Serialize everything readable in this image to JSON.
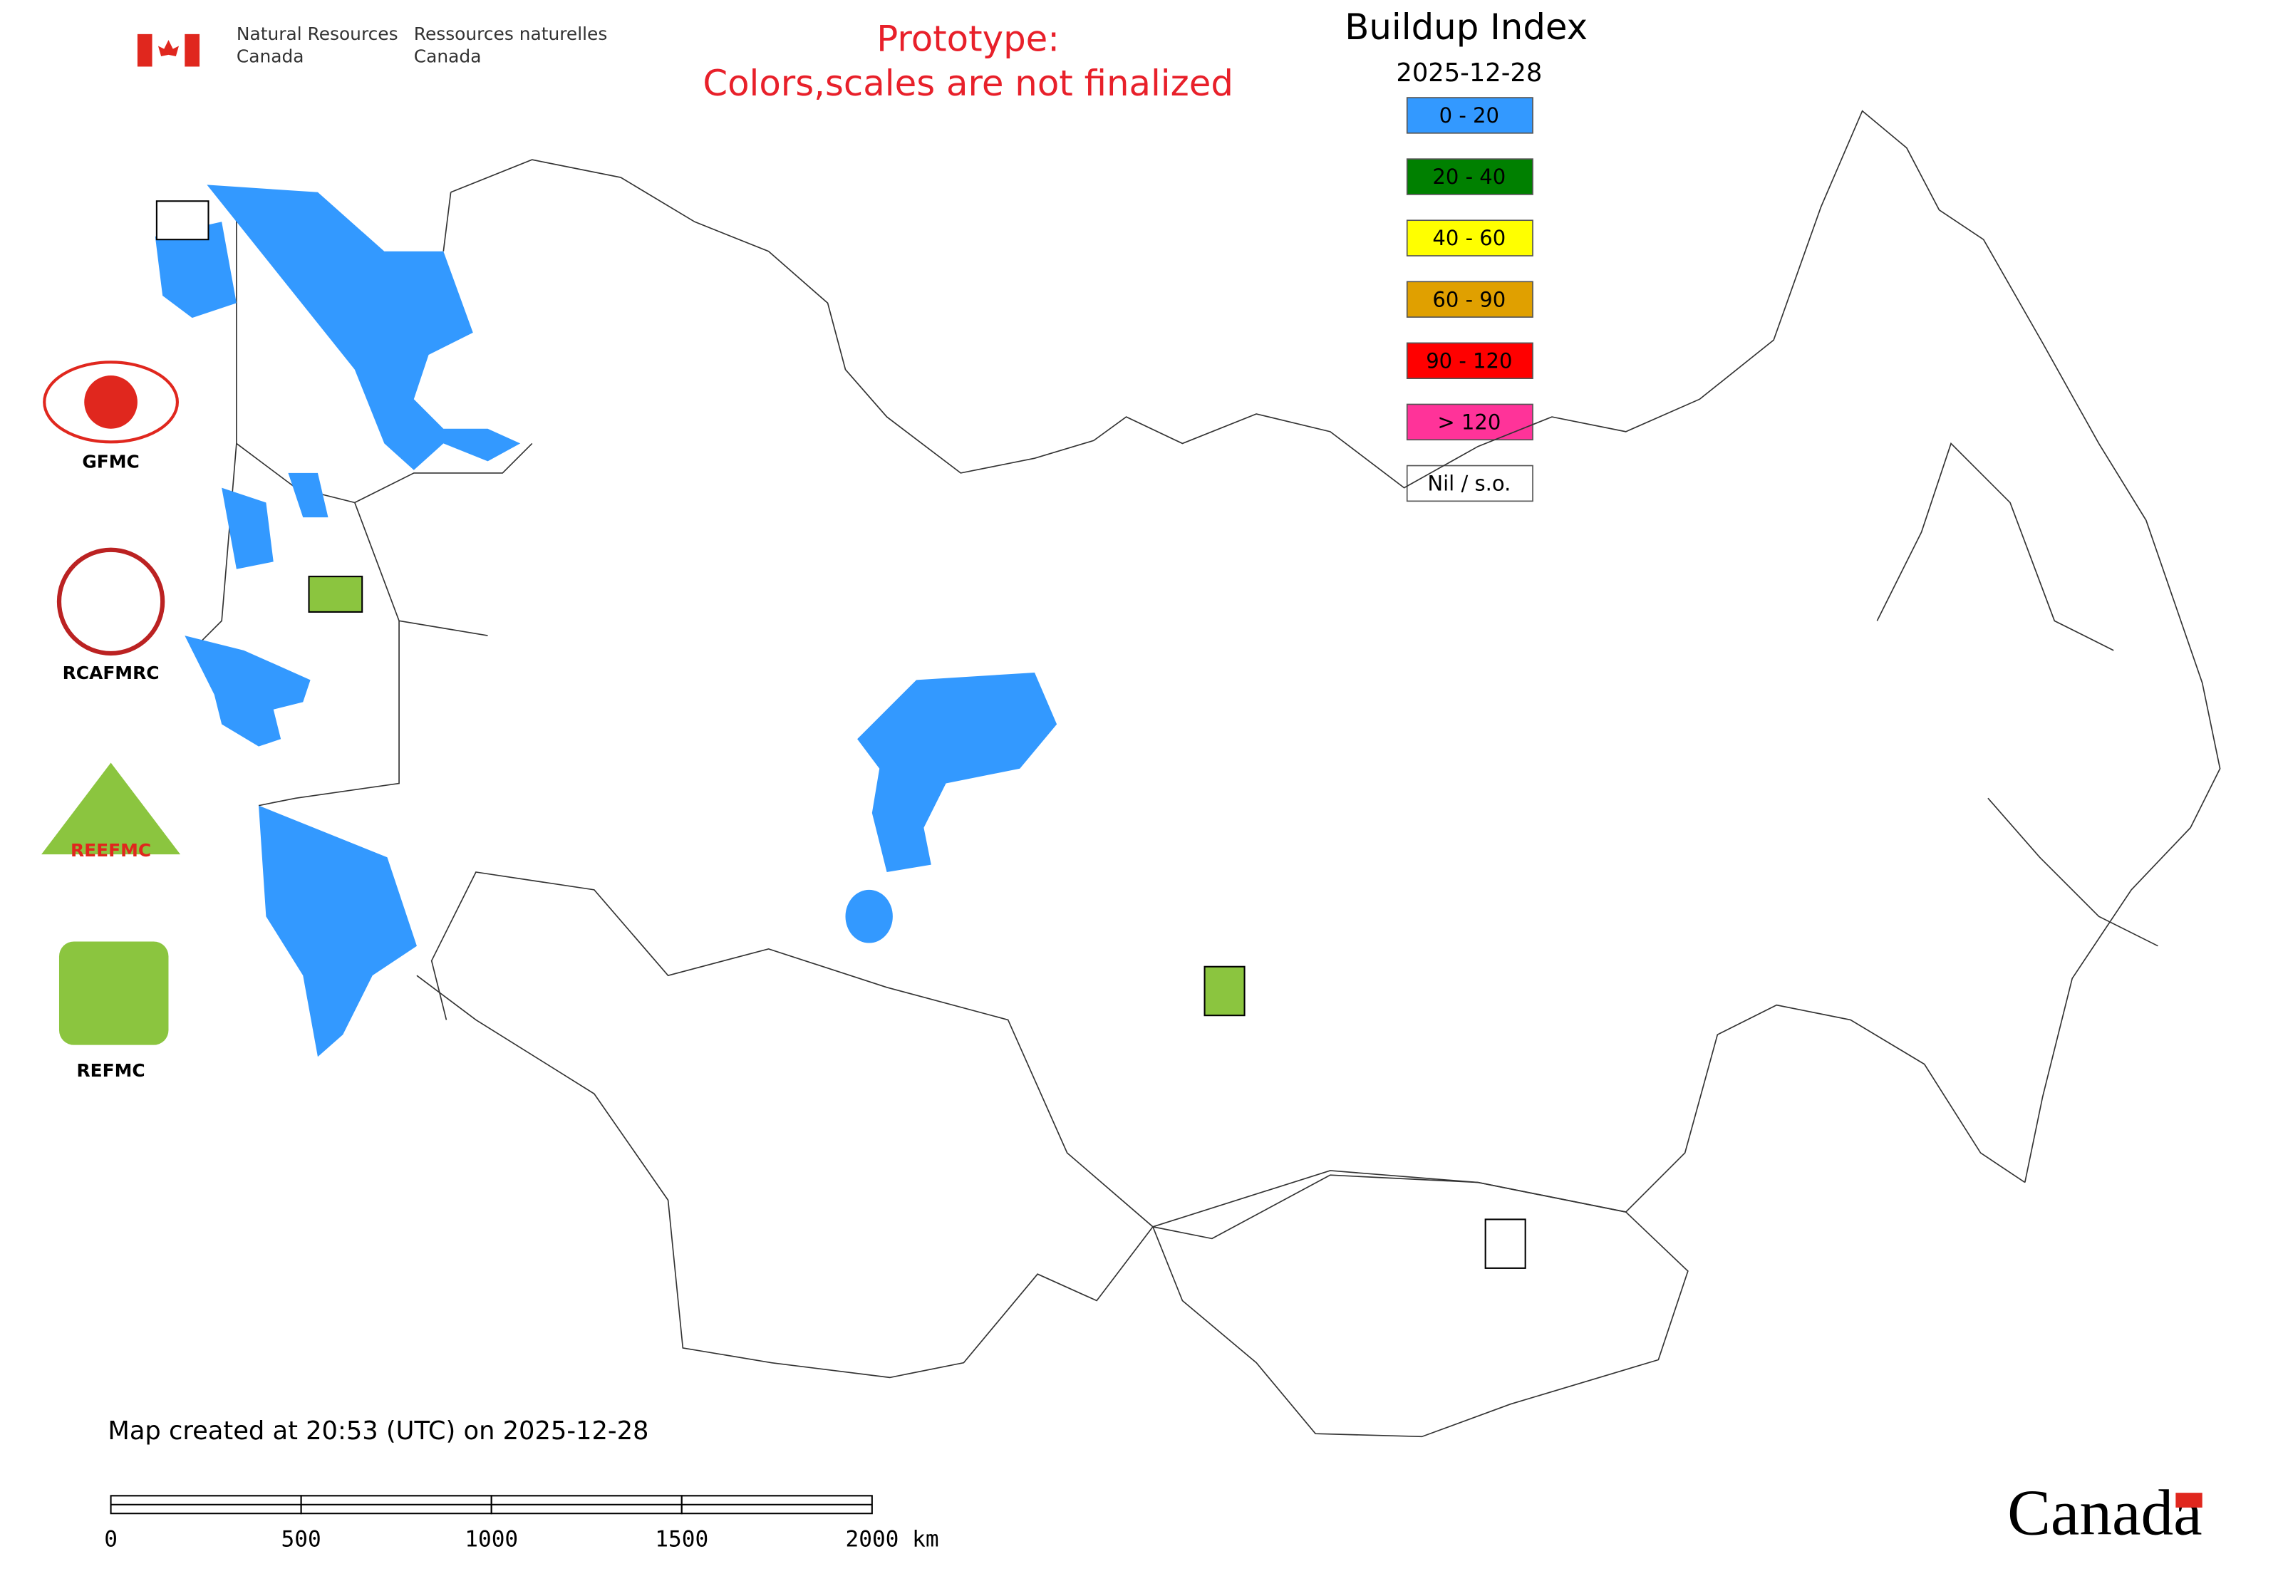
{
  "header": {
    "agency_en": [
      "Natural Resources",
      "Canada"
    ],
    "agency_fr": [
      "Ressources naturelles",
      "Canada"
    ],
    "notice": [
      "Prototype:",
      "Colors,scales are not finalized"
    ]
  },
  "map": {
    "title": "Buildup Index",
    "date": "2025-12-28",
    "legend": [
      {
        "label": "0 - 20",
        "color": "#3399ff"
      },
      {
        "label": "20 - 40",
        "color": "#008000"
      },
      {
        "label": "40 - 60",
        "color": "#ffff00"
      },
      {
        "label": "60 - 90",
        "color": "#e0a000"
      },
      {
        "label": "90 - 120",
        "color": "#ff0000"
      },
      {
        "label": "> 120",
        "color": "#ff3399"
      },
      {
        "label": "Nil / s.o.",
        "color": "#ffffff"
      }
    ],
    "created": "Map created at 20:53 (UTC) on 2025-12-28",
    "scale_bar": [
      "0",
      "500",
      "1000",
      "1500",
      "2000 km"
    ]
  },
  "logos": {
    "gfmc": "GFMC",
    "rcafmrc": "RCAFMRC",
    "reefmc": "REEFMC",
    "refmc": "REFMC"
  },
  "footer": {
    "wordmark": "Canada"
  }
}
